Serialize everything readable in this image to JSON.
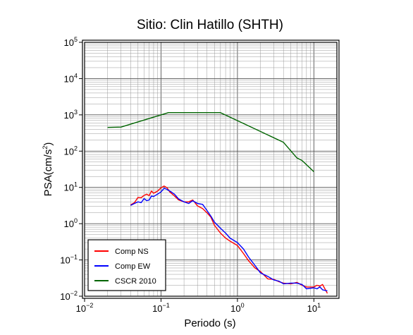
{
  "chart_data": {
    "type": "line",
    "title": "Sitio: Clin Hatillo (SHTH)",
    "xlabel": "Periodo (s)",
    "ylabel_base": "PSA(cm/s",
    "ylabel_sup": "2",
    "ylabel_tail": ")",
    "xscale": "log",
    "yscale": "log",
    "xlim": [
      0.01,
      20
    ],
    "ylim": [
      0.01,
      100000
    ],
    "grid": true,
    "legend_position": "bottom-left",
    "x_ticks": [
      {
        "value": 0.01,
        "base": "10",
        "exp": "−2"
      },
      {
        "value": 0.1,
        "base": "10",
        "exp": "−1"
      },
      {
        "value": 1,
        "base": "10",
        "exp": "0"
      },
      {
        "value": 10,
        "base": "10",
        "exp": "1"
      }
    ],
    "y_ticks": [
      {
        "value": 0.01,
        "base": "10",
        "exp": "−2"
      },
      {
        "value": 0.1,
        "base": "10",
        "exp": "−1"
      },
      {
        "value": 1,
        "base": "10",
        "exp": "0"
      },
      {
        "value": 10,
        "base": "10",
        "exp": "1"
      },
      {
        "value": 100,
        "base": "10",
        "exp": "2"
      },
      {
        "value": 1000,
        "base": "10",
        "exp": "3"
      },
      {
        "value": 10000,
        "base": "10",
        "exp": "4"
      },
      {
        "value": 100000,
        "base": "10",
        "exp": "5"
      }
    ],
    "series": [
      {
        "name": "Comp NS",
        "color": "#ff0000",
        "x": [
          0.04,
          0.045,
          0.05,
          0.055,
          0.06,
          0.065,
          0.07,
          0.075,
          0.08,
          0.09,
          0.1,
          0.11,
          0.12,
          0.13,
          0.15,
          0.17,
          0.2,
          0.23,
          0.26,
          0.3,
          0.35,
          0.4,
          0.45,
          0.5,
          0.6,
          0.7,
          0.8,
          1.0,
          1.2,
          1.4,
          1.7,
          2.0,
          2.5,
          3.0,
          3.5,
          4.0,
          5.0,
          6.0,
          7.0,
          8.0,
          10.0,
          11.0,
          12.0,
          13.0,
          15.0
        ],
        "y": [
          3.3,
          3.8,
          5.3,
          5.2,
          6.0,
          6.5,
          5.9,
          8.0,
          6.9,
          7.9,
          9.8,
          10.9,
          9.8,
          7.5,
          5.8,
          4.5,
          4.0,
          4.0,
          4.5,
          3.1,
          2.6,
          2.0,
          1.5,
          0.9,
          0.55,
          0.4,
          0.33,
          0.25,
          0.15,
          0.095,
          0.06,
          0.048,
          0.03,
          0.029,
          0.025,
          0.023,
          0.022,
          0.024,
          0.02,
          0.018,
          0.018,
          0.02,
          0.019,
          0.021,
          0.012
        ]
      },
      {
        "name": "Comp EW",
        "color": "#0000ff",
        "x": [
          0.04,
          0.045,
          0.05,
          0.055,
          0.06,
          0.065,
          0.07,
          0.075,
          0.08,
          0.09,
          0.1,
          0.11,
          0.12,
          0.13,
          0.15,
          0.17,
          0.2,
          0.23,
          0.26,
          0.3,
          0.35,
          0.4,
          0.45,
          0.5,
          0.6,
          0.7,
          0.8,
          1.0,
          1.2,
          1.4,
          1.7,
          2.0,
          2.5,
          3.0,
          3.5,
          4.0,
          5.0,
          6.0,
          7.0,
          8.0,
          10.0,
          11.0,
          12.0,
          13.0,
          15.0
        ],
        "y": [
          3.2,
          3.6,
          4.0,
          3.8,
          4.9,
          4.3,
          4.5,
          5.8,
          5.6,
          6.5,
          7.5,
          9.5,
          8.8,
          8.0,
          6.5,
          4.8,
          4.0,
          3.6,
          4.3,
          3.6,
          3.4,
          2.3,
          1.6,
          1.1,
          0.75,
          0.55,
          0.4,
          0.3,
          0.2,
          0.12,
          0.07,
          0.044,
          0.035,
          0.028,
          0.026,
          0.022,
          0.023,
          0.023,
          0.021,
          0.016,
          0.017,
          0.016,
          0.018,
          0.015,
          0.014
        ]
      },
      {
        "name": "CSCR 2010",
        "color": "#006400",
        "x": [
          0.02,
          0.03,
          0.125,
          0.6,
          4.0,
          6.0,
          7.0,
          10.0
        ],
        "y": [
          450,
          460,
          1150,
          1150,
          175,
          65,
          55,
          27
        ]
      }
    ]
  }
}
